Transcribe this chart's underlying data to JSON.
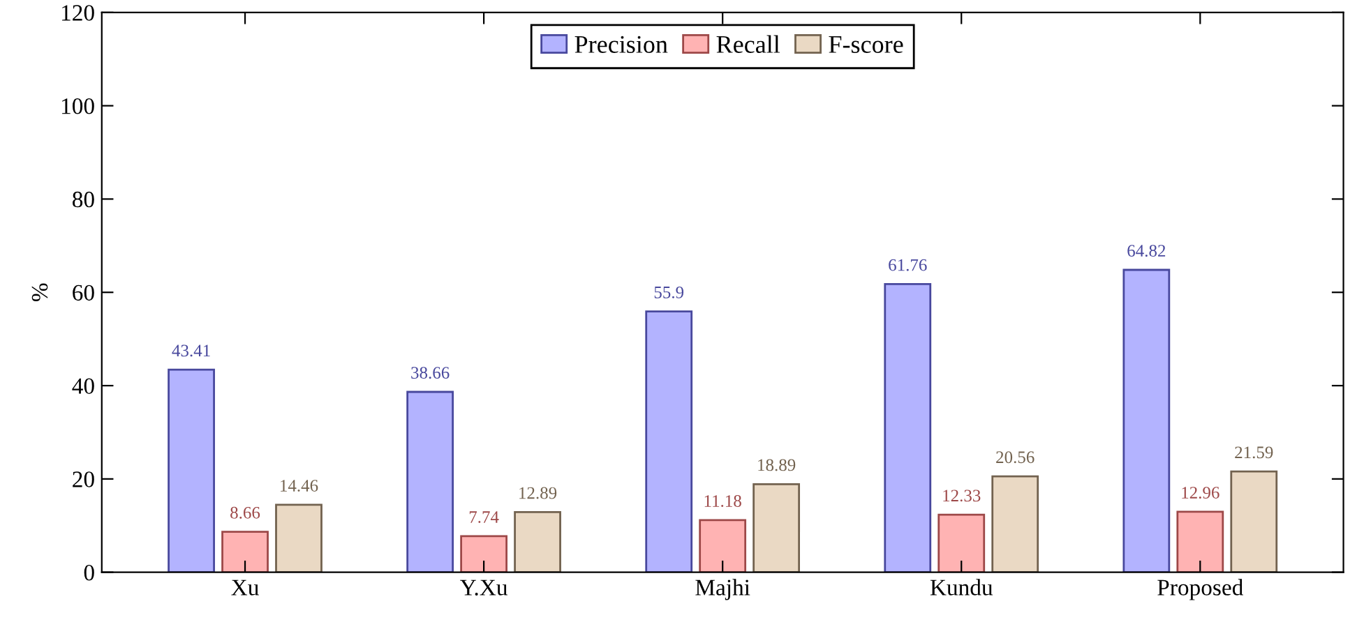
{
  "chart_data": {
    "type": "bar",
    "ylabel": "%",
    "categories": [
      "Xu",
      "Y.Xu",
      "Majhi",
      "Kundu",
      "Proposed"
    ],
    "series": [
      {
        "name": "Precision",
        "color": "#b3b3ff",
        "values": [
          43.41,
          38.66,
          55.9,
          61.76,
          64.82
        ]
      },
      {
        "name": "Recall",
        "color": "#ffb3b3",
        "values": [
          8.66,
          7.74,
          11.18,
          12.33,
          12.96
        ]
      },
      {
        "name": "F-score",
        "color": "#ead9c4",
        "values": [
          14.46,
          12.89,
          18.89,
          20.56,
          21.59
        ]
      }
    ],
    "ylim": [
      0,
      120
    ],
    "yticks": [
      0,
      20,
      40,
      60,
      80,
      100,
      120
    ],
    "data_labels": true,
    "legend": "top",
    "grid": false
  }
}
